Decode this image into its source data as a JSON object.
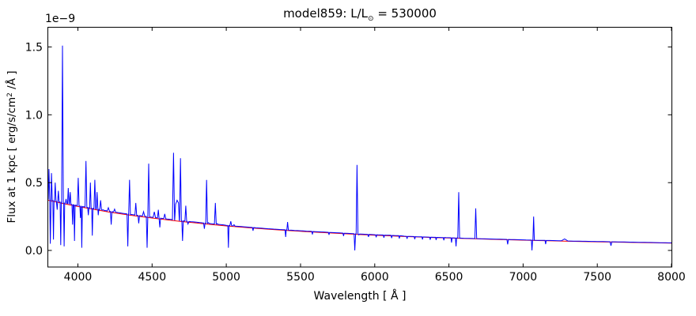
{
  "figure": {
    "title": {
      "prefix": "model859: L/L",
      "sub": "⊙",
      "suffix": " = 530000"
    },
    "offset_label": "1e−9",
    "xlabel": "Wavelength [ Å ]",
    "ylabel": {
      "pre": "Flux at 1 kpc [ erg/s/cm",
      "sup": "2",
      "post": " /Å ]"
    }
  },
  "chart_data": {
    "type": "line",
    "title": "model859: L/L⊙ = 530000",
    "xlabel": "Wavelength [ Å ]",
    "ylabel": "Flux at 1 kpc [ erg/s/cm^2 /Å ]",
    "flux_unit_factor": "1e-9",
    "grid": false,
    "legend": "none",
    "xlim": [
      3800,
      8000
    ],
    "ylim": [
      -0.122,
      1.645
    ],
    "x_ticks": [
      4000,
      4500,
      5000,
      5500,
      6000,
      6500,
      7000,
      7500,
      8000
    ],
    "y_ticks": [
      {
        "v": 0.0,
        "label": "0.0"
      },
      {
        "v": 0.5,
        "label": "0.5"
      },
      {
        "v": 1.0,
        "label": "1.0"
      },
      {
        "v": 1.5,
        "label": "1.5"
      }
    ],
    "series": [
      {
        "name": "spectrum",
        "color": "#0000ff",
        "features": [
          [
            3805,
            0.6,
            5
          ],
          [
            3814,
            0.05,
            4
          ],
          [
            3822,
            0.57,
            5
          ],
          [
            3835,
            0.08,
            4
          ],
          [
            3847,
            0.5,
            5
          ],
          [
            3860,
            0.3,
            5
          ],
          [
            3868,
            0.44,
            5
          ],
          [
            3884,
            0.04,
            4
          ],
          [
            3896,
            1.51,
            6
          ],
          [
            3907,
            0.03,
            4
          ],
          [
            3920,
            0.38,
            5
          ],
          [
            3935,
            0.46,
            5
          ],
          [
            3948,
            0.43,
            5
          ],
          [
            3964,
            0.19,
            4
          ],
          [
            3977,
            0.07,
            4
          ],
          [
            4002,
            0.535,
            6
          ],
          [
            4017,
            0.24,
            4
          ],
          [
            4026,
            0.02,
            4
          ],
          [
            4054,
            0.66,
            6
          ],
          [
            4070,
            0.26,
            4
          ],
          [
            4084,
            0.5,
            5
          ],
          [
            4097,
            0.11,
            4
          ],
          [
            4114,
            0.52,
            6
          ],
          [
            4129,
            0.43,
            5
          ],
          [
            4137,
            0.26,
            4
          ],
          [
            4153,
            0.37,
            6
          ],
          [
            4170,
            0.3,
            6
          ],
          [
            4205,
            0.315,
            8
          ],
          [
            4224,
            0.19,
            5
          ],
          [
            4247,
            0.305,
            7
          ],
          [
            4336,
            0.03,
            5
          ],
          [
            4348,
            0.52,
            6
          ],
          [
            4390,
            0.35,
            6
          ],
          [
            4410,
            0.2,
            5
          ],
          [
            4442,
            0.286,
            8
          ],
          [
            4466,
            0.02,
            5
          ],
          [
            4477,
            0.64,
            6
          ],
          [
            4515,
            0.285,
            8
          ],
          [
            4542,
            0.3,
            6
          ],
          [
            4552,
            0.17,
            5
          ],
          [
            4585,
            0.27,
            7
          ],
          [
            4644,
            0.72,
            7
          ],
          [
            4658,
            0.34,
            6
          ],
          [
            4668,
            0.37,
            6
          ],
          [
            4678,
            0.35,
            5
          ],
          [
            4691,
            0.68,
            6
          ],
          [
            4705,
            0.07,
            5
          ],
          [
            4727,
            0.33,
            6
          ],
          [
            4742,
            0.195,
            6
          ],
          [
            4852,
            0.16,
            5
          ],
          [
            4867,
            0.52,
            6
          ],
          [
            4880,
            0.205,
            5
          ],
          [
            4926,
            0.35,
            6
          ],
          [
            4940,
            0.198,
            5
          ],
          [
            5014,
            0.02,
            4
          ],
          [
            5030,
            0.215,
            6
          ],
          [
            5052,
            0.19,
            7
          ],
          [
            5180,
            0.145,
            4
          ],
          [
            5400,
            0.1,
            4
          ],
          [
            5413,
            0.21,
            5
          ],
          [
            5580,
            0.118,
            4
          ],
          [
            5692,
            0.115,
            4
          ],
          [
            5790,
            0.106,
            4
          ],
          [
            5866,
            0.0,
            5
          ],
          [
            5881,
            0.63,
            6
          ],
          [
            5893,
            0.115,
            5
          ],
          [
            5958,
            0.1,
            4
          ],
          [
            6010,
            0.097,
            4
          ],
          [
            6062,
            0.094,
            4
          ],
          [
            6114,
            0.091,
            4
          ],
          [
            6166,
            0.088,
            4
          ],
          [
            6218,
            0.086,
            4
          ],
          [
            6270,
            0.083,
            4
          ],
          [
            6322,
            0.081,
            4
          ],
          [
            6374,
            0.079,
            4
          ],
          [
            6414,
            0.077,
            4
          ],
          [
            6466,
            0.075,
            4
          ],
          [
            6518,
            0.058,
            4
          ],
          [
            6548,
            0.03,
            4
          ],
          [
            6566,
            0.43,
            6
          ],
          [
            6681,
            0.31,
            6
          ],
          [
            6896,
            0.045,
            5
          ],
          [
            7060,
            0.0,
            4
          ],
          [
            7071,
            0.25,
            5
          ],
          [
            7152,
            0.047,
            4
          ],
          [
            7280,
            0.085,
            22
          ],
          [
            7592,
            0.035,
            6
          ]
        ]
      },
      {
        "name": "continuum",
        "color": "#ff0000",
        "points": [
          [
            3800,
            0.37
          ],
          [
            3900,
            0.346
          ],
          [
            4000,
            0.324
          ],
          [
            4100,
            0.304
          ],
          [
            4200,
            0.285
          ],
          [
            4300,
            0.268
          ],
          [
            4400,
            0.253
          ],
          [
            4500,
            0.239
          ],
          [
            4600,
            0.226
          ],
          [
            4700,
            0.213
          ],
          [
            4800,
            0.202
          ],
          [
            4900,
            0.191
          ],
          [
            5000,
            0.181
          ],
          [
            5100,
            0.172
          ],
          [
            5200,
            0.163
          ],
          [
            5300,
            0.155
          ],
          [
            5400,
            0.148
          ],
          [
            5500,
            0.141
          ],
          [
            5600,
            0.135
          ],
          [
            5700,
            0.129
          ],
          [
            5800,
            0.123
          ],
          [
            5900,
            0.117
          ],
          [
            6000,
            0.112
          ],
          [
            6100,
            0.108
          ],
          [
            6200,
            0.103
          ],
          [
            6300,
            0.099
          ],
          [
            6400,
            0.095
          ],
          [
            6500,
            0.092
          ],
          [
            6600,
            0.088
          ],
          [
            6700,
            0.085
          ],
          [
            6800,
            0.082
          ],
          [
            6900,
            0.079
          ],
          [
            7000,
            0.076
          ],
          [
            7100,
            0.073
          ],
          [
            7200,
            0.071
          ],
          [
            7300,
            0.068
          ],
          [
            7400,
            0.066
          ],
          [
            7500,
            0.064
          ],
          [
            7600,
            0.062
          ],
          [
            7700,
            0.06
          ],
          [
            7800,
            0.058
          ],
          [
            7900,
            0.056
          ],
          [
            8000,
            0.054
          ]
        ]
      }
    ]
  }
}
